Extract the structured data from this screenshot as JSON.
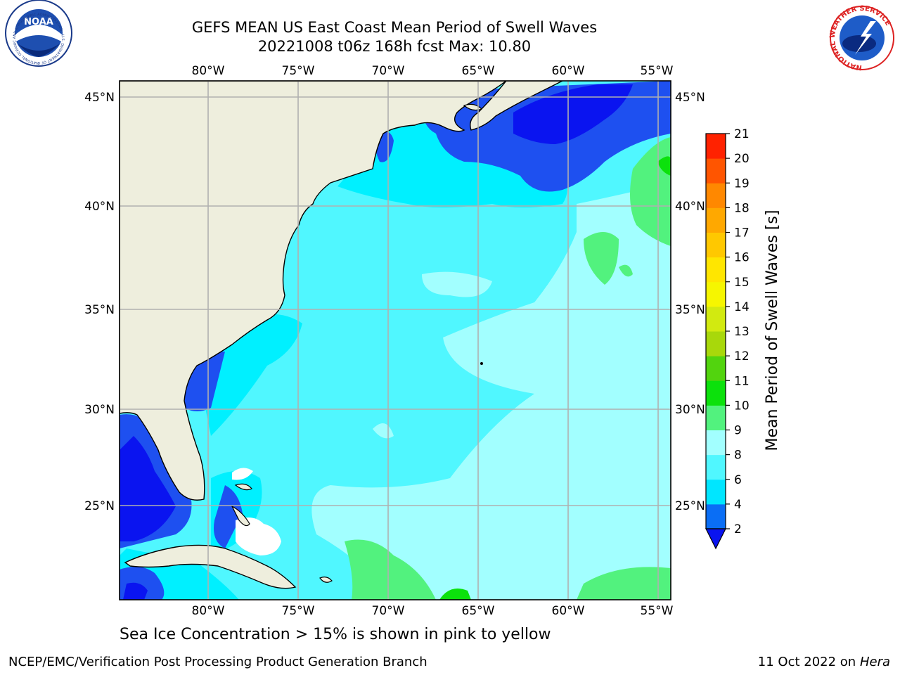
{
  "title": {
    "line1": "GEFS MEAN US East Coast Mean Period of Swell Waves",
    "line2": "20221008 t06z 168h fcst   Max: 10.80"
  },
  "map": {
    "lon_ticks": [
      "80°W",
      "75°W",
      "70°W",
      "65°W",
      "60°W",
      "55°W"
    ],
    "lat_ticks": [
      "45°N",
      "40°N",
      "35°N",
      "30°N",
      "25°N"
    ],
    "land_color": "#EEEEDD",
    "grid_color": "#B0B0B0"
  },
  "colorbar": {
    "label": "Mean Period of Swell Waves [s]",
    "ticks": [
      "2",
      "4",
      "6",
      "8",
      "9",
      "10",
      "11",
      "12",
      "13",
      "14",
      "15",
      "16",
      "17",
      "18",
      "19",
      "20",
      "21"
    ],
    "colors": [
      "#0A6EF5",
      "#00E6FF",
      "#50F7FF",
      "#A2FFFF",
      "#52F27E",
      "#0CE10C",
      "#52D40E",
      "#A8D80B",
      "#D2EA10",
      "#F6F600",
      "#FFE600",
      "#FFC800",
      "#FFA800",
      "#FF8800",
      "#FF5500",
      "#FF2200"
    ],
    "extend_color": "#0A14F0"
  },
  "legend": {
    "color_blue": "#1E50F0",
    "color_deep": "#0A14F0",
    "color_cyan": "#00F0FF",
    "color_lightcyan": "#A2FFFF",
    "color_green": "#52F27E"
  },
  "note": "Sea Ice Concentration > 15% is shown in pink to yellow",
  "footer": {
    "left": "NCEP/EMC/Verification Post Processing Product Generation Branch",
    "date": "11 Oct 2022 on ",
    "host": "Hera"
  },
  "logos": {
    "noaa_text": "NOAA",
    "noaa_ring": "NATIONAL OCEANIC AND ATMOSPHERIC ADMINISTRATION · U.S. DEPARTMENT OF COMMERCE",
    "nws_ring": "NATIONAL WEATHER SERVICE"
  }
}
